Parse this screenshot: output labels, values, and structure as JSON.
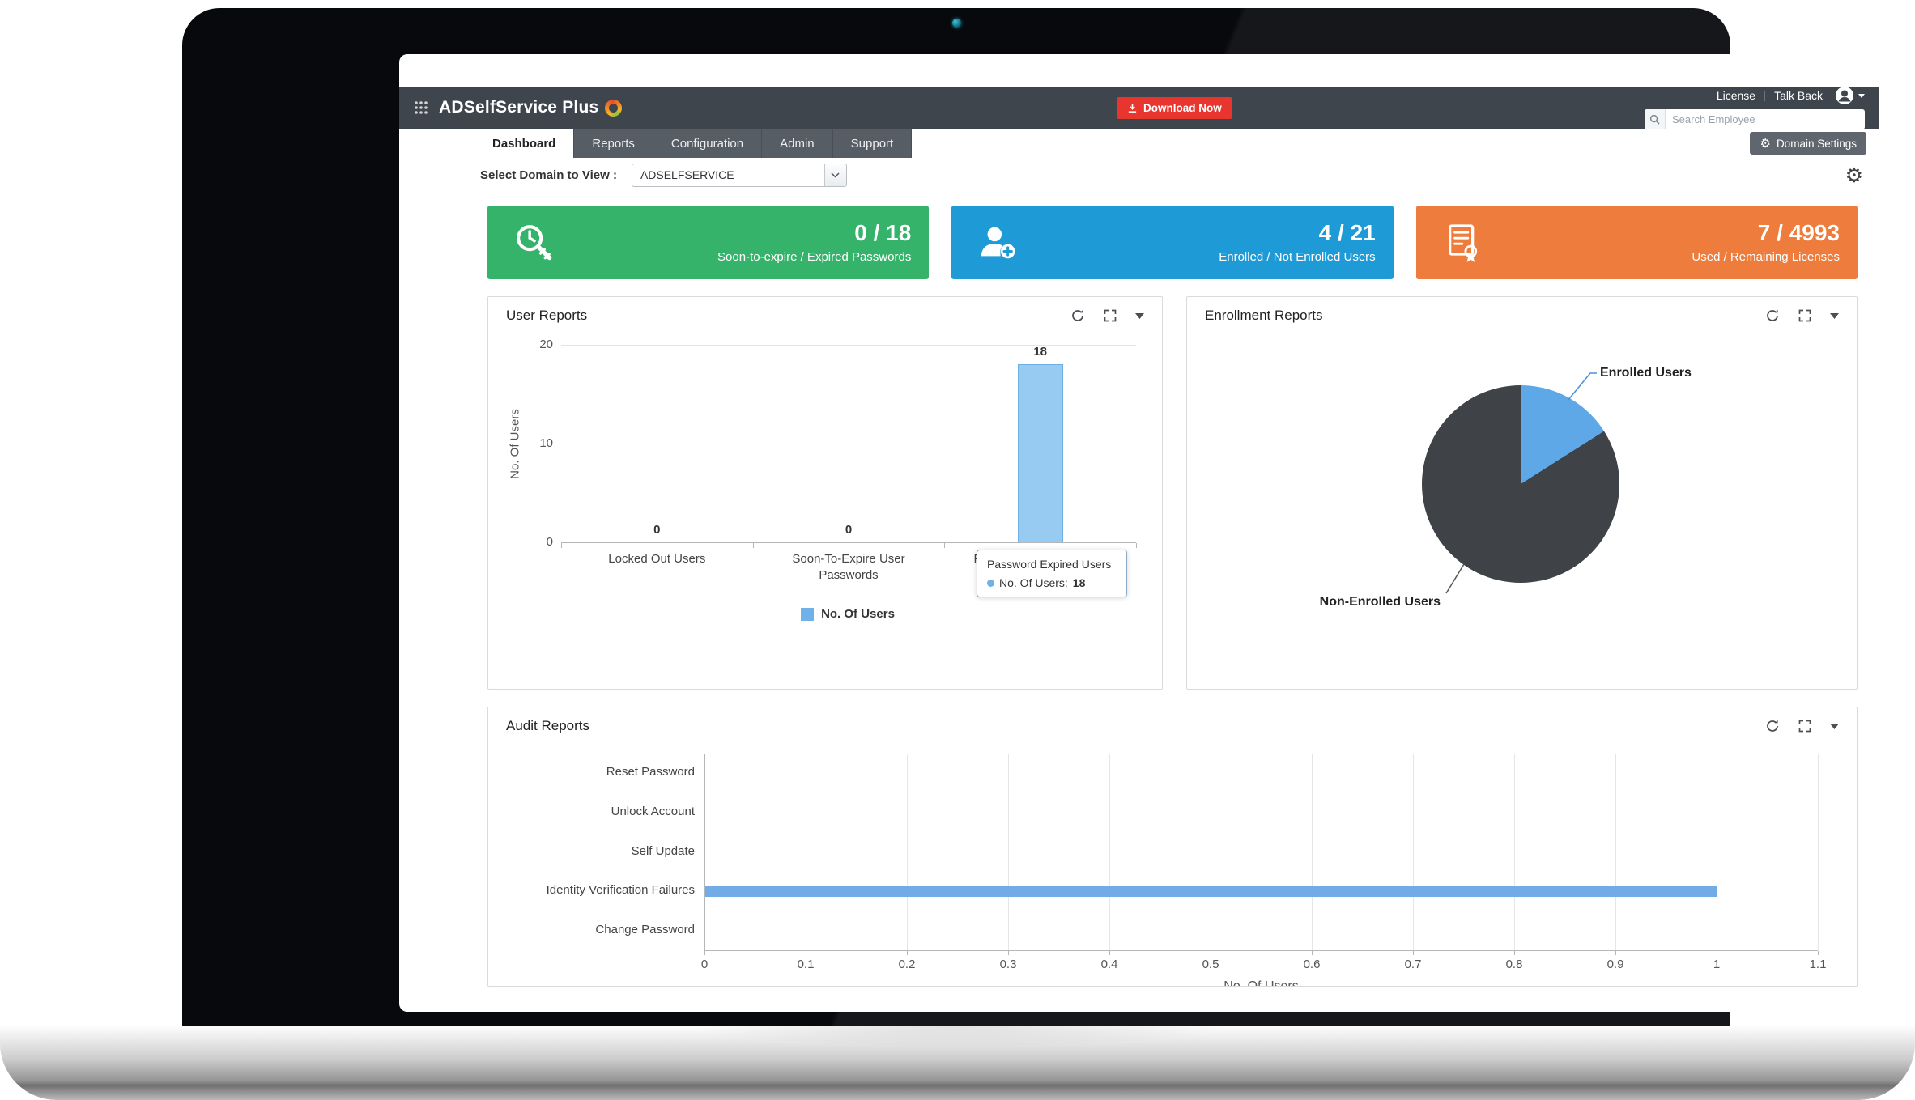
{
  "header": {
    "logo_text": "ADSelfService Plus",
    "download_button": "Download Now",
    "license": "License",
    "talk_back": "Talk Back",
    "search_placeholder": "Search Employee",
    "domain_settings": "Domain Settings"
  },
  "tabs": [
    {
      "label": "Dashboard",
      "active": true
    },
    {
      "label": "Reports",
      "active": false
    },
    {
      "label": "Configuration",
      "active": false
    },
    {
      "label": "Admin",
      "active": false
    },
    {
      "label": "Support",
      "active": false
    }
  ],
  "domain_select": {
    "label": "Select Domain to View :",
    "value": "ADSELFSERVICE"
  },
  "stat_cards": [
    {
      "icon": "password-expiry-icon",
      "value": "0 / 18",
      "label": "Soon-to-expire / Expired Passwords",
      "color": "#35b36a"
    },
    {
      "icon": "enroll-user-icon",
      "value": "4 / 21",
      "label": "Enrolled / Not Enrolled Users",
      "color": "#1e9bd7"
    },
    {
      "icon": "license-doc-icon",
      "value": "7 / 4993",
      "label": "Used / Remaining Licenses",
      "color": "#ee7c3d"
    }
  ],
  "colors": {
    "download_button": "#e8352e",
    "header_bar": "#3e454d"
  },
  "chart_data": [
    {
      "id": "user_reports",
      "type": "bar",
      "title": "User Reports",
      "categories": [
        "Locked Out Users",
        "Soon-To-Expire User Passwords",
        "Password Expired Users"
      ],
      "values": [
        0,
        0,
        18
      ],
      "ylabel": "No. Of Users",
      "ylim": [
        0,
        20
      ],
      "yticks": [
        0,
        10,
        20
      ],
      "legend": [
        "No. Of Users"
      ],
      "series_color": "#97cbf2",
      "series_border": "#6fb0e4",
      "legend_color": "#6fb1e8",
      "grid": true,
      "legend_position": "bottom",
      "tooltip": {
        "title": "Password Expired Users",
        "label": "No. Of Users:",
        "value": "18"
      }
    },
    {
      "id": "enrollment_reports",
      "type": "pie",
      "title": "Enrollment Reports",
      "slices": [
        {
          "label": "Enrolled Users",
          "value": 4,
          "color": "#5fa8e8"
        },
        {
          "label": "Non-Enrolled Users",
          "value": 21,
          "color": "#3f4347"
        }
      ]
    },
    {
      "id": "audit_reports",
      "type": "bar-horizontal",
      "title": "Audit Reports",
      "categories": [
        "Reset Password",
        "Unlock Account",
        "Self Update",
        "Identity Verification Failures",
        "Change Password"
      ],
      "values": [
        0,
        0,
        0,
        1,
        0
      ],
      "xlabel": "No. Of Users",
      "xlim": [
        0,
        1.1
      ],
      "xticks": [
        0,
        0.1,
        0.2,
        0.3,
        0.4,
        0.5,
        0.6,
        0.7,
        0.8,
        0.9,
        1,
        1.1
      ],
      "series_color": "#72abe5",
      "grid": true
    }
  ]
}
